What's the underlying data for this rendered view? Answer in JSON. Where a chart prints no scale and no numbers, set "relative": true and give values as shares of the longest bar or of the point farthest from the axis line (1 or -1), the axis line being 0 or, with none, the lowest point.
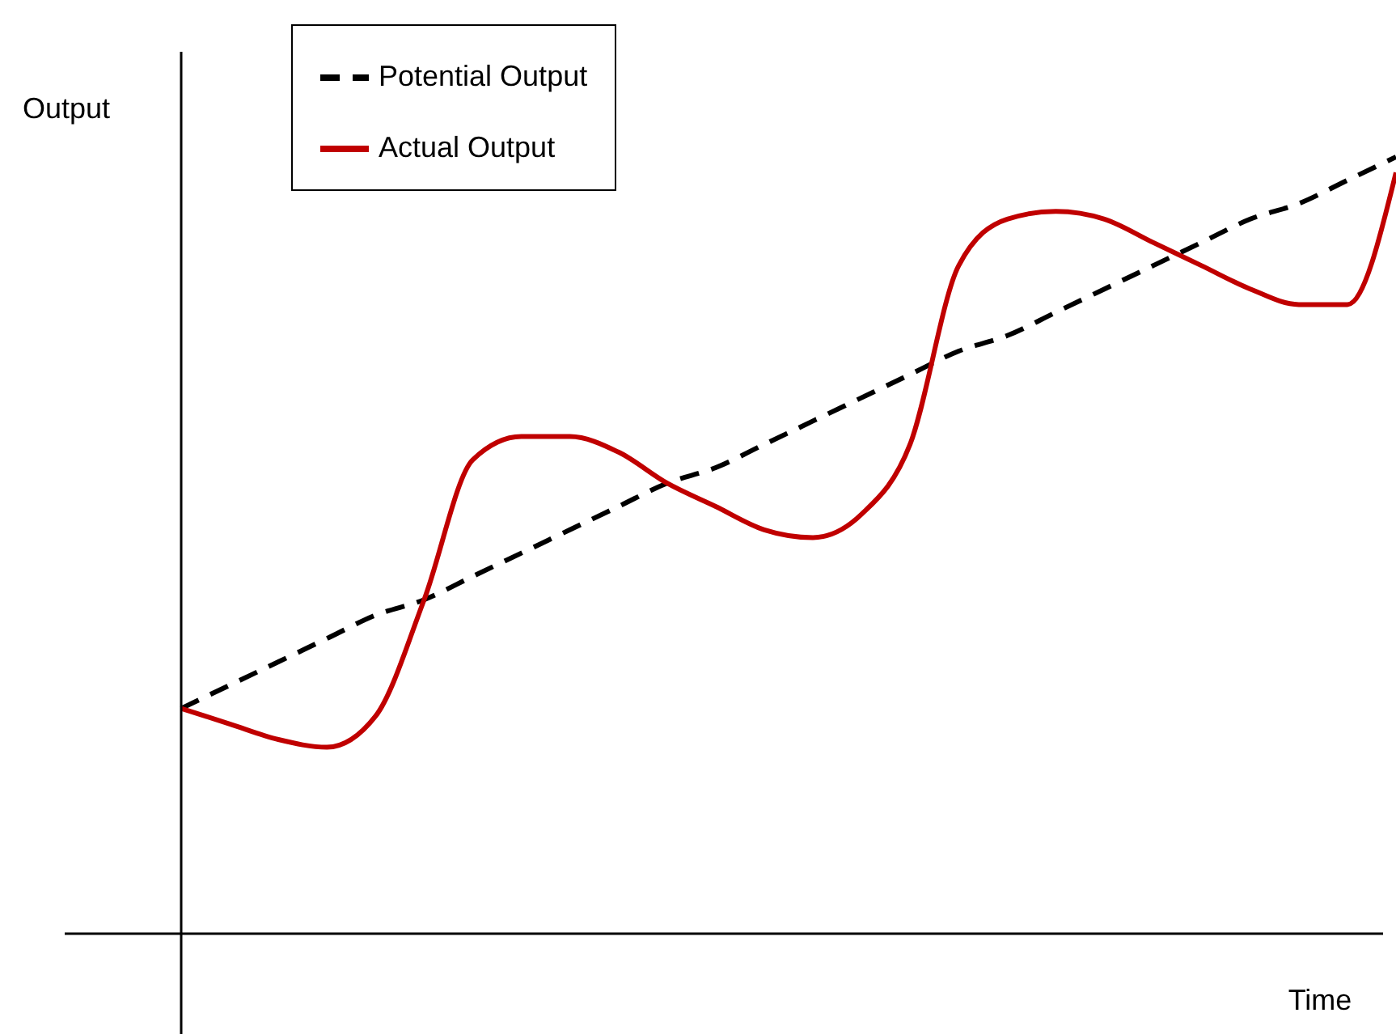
{
  "chart_data": {
    "type": "line",
    "relative": true,
    "xlabel": "Time",
    "ylabel": "Output",
    "legend": "top left",
    "marker": "none",
    "categories": [
      null,
      null,
      null,
      null,
      null,
      null,
      null,
      null,
      null,
      null,
      null,
      null,
      null,
      null,
      null,
      null,
      null,
      null,
      null,
      null,
      null,
      null,
      null,
      null,
      null,
      null
    ],
    "series": [
      {
        "name": "Potential Output",
        "color": "#000000",
        "line_style": "dashed",
        "values": [
          0.29,
          0.32,
          0.35,
          0.38,
          0.41,
          0.43,
          0.46,
          0.49,
          0.52,
          0.55,
          0.58,
          0.6,
          0.63,
          0.66,
          0.69,
          0.72,
          0.75,
          0.77,
          0.8,
          0.83,
          0.86,
          0.89,
          0.92,
          0.94,
          0.97,
          1.0
        ]
      },
      {
        "name": "Actual Output",
        "color": "#c00000",
        "line_style": "solid",
        "values": [
          0.29,
          0.27,
          0.25,
          0.24,
          0.28,
          0.43,
          0.61,
          0.64,
          0.64,
          0.62,
          0.58,
          0.55,
          0.52,
          0.51,
          0.54,
          0.63,
          0.86,
          0.92,
          0.93,
          0.92,
          0.89,
          0.86,
          0.83,
          0.81,
          0.81,
          0.98
        ]
      }
    ]
  }
}
